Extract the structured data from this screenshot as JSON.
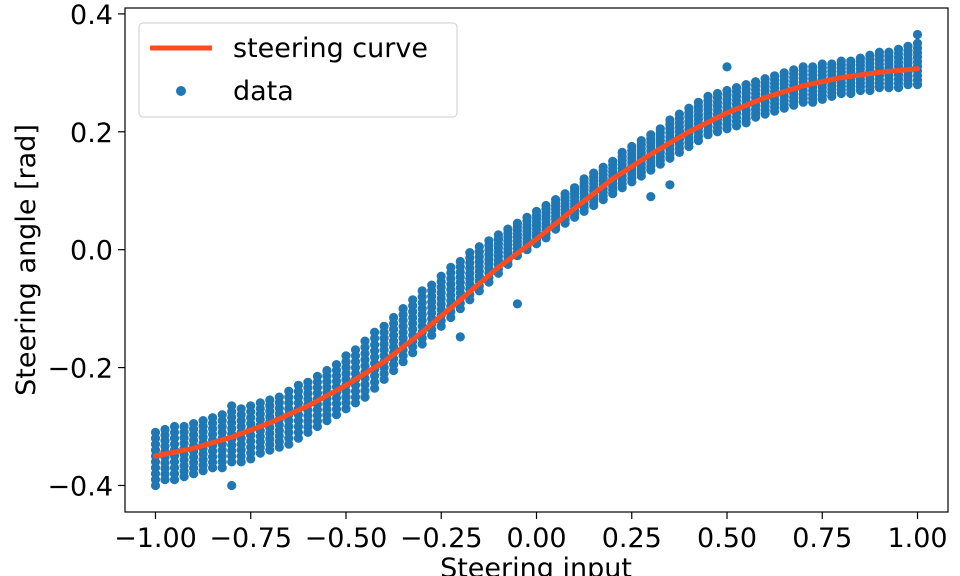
{
  "chart_data": {
    "type": "scatter",
    "title": "",
    "xlabel": "Steering input",
    "ylabel": "Steering angle [rad]",
    "xlim": [
      -1.08,
      1.08
    ],
    "ylim": [
      -0.445,
      0.41
    ],
    "grid": false,
    "legend_position": "top-left",
    "x_ticks": [
      -1.0,
      -0.75,
      -0.5,
      -0.25,
      0.0,
      0.25,
      0.5,
      0.75,
      1.0
    ],
    "x_tick_labels": [
      "−1.00",
      "−0.75",
      "−0.50",
      "−0.25",
      "0.00",
      "0.25",
      "0.50",
      "0.75",
      "1.00"
    ],
    "y_ticks": [
      -0.4,
      -0.2,
      0.0,
      0.2,
      0.4
    ],
    "y_tick_labels": [
      "−0.4",
      "−0.2",
      "0.0",
      "0.2",
      "0.4"
    ],
    "series": [
      {
        "name": "steering curve",
        "kind": "line",
        "color": "#ff4b1f",
        "x": [
          -1.0,
          -0.9,
          -0.8,
          -0.7,
          -0.6,
          -0.5,
          -0.4,
          -0.3,
          -0.2,
          -0.1,
          0.0,
          0.1,
          0.2,
          0.3,
          0.4,
          0.5,
          0.6,
          0.7,
          0.8,
          0.9,
          1.0
        ],
        "y": [
          -0.35,
          -0.337,
          -0.318,
          -0.294,
          -0.265,
          -0.23,
          -0.19,
          -0.14,
          -0.085,
          -0.03,
          0.018,
          0.07,
          0.12,
          0.162,
          0.2,
          0.232,
          0.258,
          0.278,
          0.292,
          0.301,
          0.307
        ]
      },
      {
        "name": "data",
        "kind": "scatter",
        "color": "#1f77b4",
        "x": [
          -1.0,
          -0.975,
          -0.95,
          -0.925,
          -0.9,
          -0.875,
          -0.85,
          -0.825,
          -0.8,
          -0.775,
          -0.75,
          -0.725,
          -0.7,
          -0.675,
          -0.65,
          -0.625,
          -0.6,
          -0.575,
          -0.55,
          -0.525,
          -0.5,
          -0.475,
          -0.45,
          -0.425,
          -0.4,
          -0.375,
          -0.35,
          -0.325,
          -0.3,
          -0.275,
          -0.25,
          -0.225,
          -0.2,
          -0.175,
          -0.15,
          -0.125,
          -0.1,
          -0.075,
          -0.05,
          -0.025,
          0.0,
          0.025,
          0.05,
          0.075,
          0.1,
          0.125,
          0.15,
          0.175,
          0.2,
          0.225,
          0.25,
          0.275,
          0.3,
          0.325,
          0.35,
          0.375,
          0.4,
          0.425,
          0.45,
          0.475,
          0.5,
          0.525,
          0.55,
          0.575,
          0.6,
          0.625,
          0.65,
          0.675,
          0.7,
          0.725,
          0.75,
          0.775,
          0.8,
          0.825,
          0.85,
          0.875,
          0.9,
          0.925,
          0.95,
          0.975,
          1.0
        ],
        "y_min": [
          -0.4,
          -0.39,
          -0.39,
          -0.385,
          -0.38,
          -0.375,
          -0.37,
          -0.37,
          -0.36,
          -0.36,
          -0.355,
          -0.345,
          -0.34,
          -0.335,
          -0.33,
          -0.32,
          -0.31,
          -0.3,
          -0.29,
          -0.28,
          -0.27,
          -0.26,
          -0.25,
          -0.235,
          -0.22,
          -0.205,
          -0.19,
          -0.175,
          -0.16,
          -0.145,
          -0.13,
          -0.115,
          -0.1,
          -0.085,
          -0.07,
          -0.055,
          -0.04,
          -0.025,
          -0.01,
          0.0,
          0.01,
          0.02,
          0.035,
          0.045,
          0.055,
          0.065,
          0.075,
          0.085,
          0.095,
          0.105,
          0.115,
          0.125,
          0.135,
          0.145,
          0.155,
          0.165,
          0.175,
          0.185,
          0.195,
          0.2,
          0.205,
          0.21,
          0.215,
          0.225,
          0.23,
          0.235,
          0.24,
          0.245,
          0.25,
          0.25,
          0.255,
          0.26,
          0.265,
          0.265,
          0.27,
          0.27,
          0.275,
          0.275,
          0.275,
          0.28,
          0.28
        ],
        "y_max": [
          -0.31,
          -0.305,
          -0.3,
          -0.3,
          -0.295,
          -0.29,
          -0.285,
          -0.28,
          -0.275,
          -0.27,
          -0.265,
          -0.26,
          -0.255,
          -0.25,
          -0.24,
          -0.23,
          -0.225,
          -0.215,
          -0.205,
          -0.195,
          -0.18,
          -0.17,
          -0.155,
          -0.14,
          -0.13,
          -0.115,
          -0.1,
          -0.085,
          -0.07,
          -0.06,
          -0.045,
          -0.03,
          -0.02,
          -0.005,
          0.005,
          0.015,
          0.025,
          0.035,
          0.045,
          0.055,
          0.065,
          0.075,
          0.085,
          0.095,
          0.105,
          0.12,
          0.13,
          0.14,
          0.15,
          0.165,
          0.175,
          0.185,
          0.195,
          0.205,
          0.22,
          0.23,
          0.24,
          0.25,
          0.26,
          0.265,
          0.27,
          0.275,
          0.28,
          0.285,
          0.29,
          0.295,
          0.3,
          0.305,
          0.31,
          0.31,
          0.315,
          0.315,
          0.32,
          0.32,
          0.325,
          0.33,
          0.335,
          0.335,
          0.34,
          0.345,
          0.35
        ],
        "outliers_x": [
          -0.8,
          -0.8,
          -0.05,
          -0.1,
          0.1,
          0.3,
          0.35,
          -0.2,
          0.5,
          1.0
        ],
        "outliers_y": [
          -0.265,
          -0.4,
          -0.092,
          0.018,
          0.105,
          0.09,
          0.11,
          -0.148,
          0.31,
          0.365
        ]
      }
    ]
  }
}
